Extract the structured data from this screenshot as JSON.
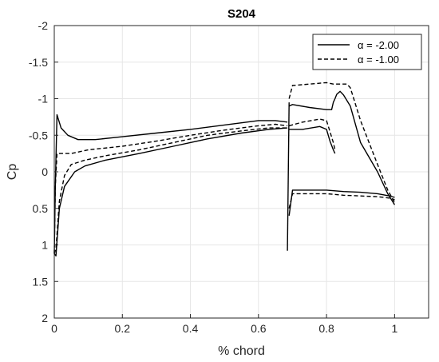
{
  "chart_data": {
    "type": "line",
    "title": "S204",
    "xlabel": "% chord",
    "ylabel": "Cp",
    "xlim": [
      0,
      1.1
    ],
    "ylim": [
      -2,
      2
    ],
    "y_reversed": true,
    "grid": true,
    "legend_position": "top-right",
    "x_ticks": [
      "0",
      "0.2",
      "0.4",
      "0.6",
      "0.8",
      "1"
    ],
    "y_ticks": [
      "-2",
      "-1.5",
      "-1",
      "-0.5",
      "0",
      "0.5",
      "1",
      "1.5",
      "2"
    ],
    "series": [
      {
        "name": "α = -2.00",
        "style": "solid",
        "color": "#000000",
        "segments": [
          {
            "x": [
              0.0,
              0.003,
              0.008,
              0.02,
              0.04,
              0.07,
              0.12,
              0.2,
              0.3,
              0.4,
              0.5,
              0.6,
              0.65,
              0.685
            ],
            "y": [
              1.12,
              0.2,
              -0.78,
              -0.6,
              -0.5,
              -0.44,
              -0.44,
              -0.48,
              -0.53,
              -0.58,
              -0.64,
              -0.7,
              -0.7,
              -0.68
            ]
          },
          {
            "x": [
              0.0,
              0.005,
              0.015,
              0.03,
              0.06,
              0.09,
              0.15,
              0.25,
              0.35,
              0.45,
              0.55,
              0.63,
              0.685
            ],
            "y": [
              1.12,
              1.15,
              0.5,
              0.2,
              0.0,
              -0.08,
              -0.16,
              -0.25,
              -0.35,
              -0.45,
              -0.53,
              -0.58,
              -0.6
            ]
          },
          {
            "x": [
              0.685,
              0.69
            ],
            "y": [
              1.08,
              -0.95
            ]
          },
          {
            "x": [
              0.69,
              0.7,
              0.75,
              0.8,
              0.815,
              0.82,
              0.825,
              0.83,
              0.84,
              0.85,
              0.87,
              0.9,
              0.95,
              0.98,
              1.0
            ],
            "y": [
              -0.9,
              -0.92,
              -0.88,
              -0.85,
              -0.85,
              -0.95,
              -1.0,
              -1.06,
              -1.1,
              -1.05,
              -0.9,
              -0.4,
              -0.0,
              0.3,
              0.45
            ]
          },
          {
            "x": [
              0.69,
              0.73,
              0.78,
              0.8,
              0.81,
              0.82,
              0.825
            ],
            "y": [
              -0.58,
              -0.58,
              -0.62,
              -0.58,
              -0.42,
              -0.3,
              -0.25
            ]
          },
          {
            "x": [
              0.69,
              0.7,
              0.75,
              0.8,
              0.85,
              0.9,
              0.95,
              0.985,
              1.0
            ],
            "y": [
              0.6,
              0.25,
              0.25,
              0.25,
              0.27,
              0.28,
              0.3,
              0.33,
              0.35
            ]
          }
        ]
      },
      {
        "name": "α = -1.00",
        "style": "dashed",
        "color": "#000000",
        "segments": [
          {
            "x": [
              0.0,
              0.003,
              0.008,
              0.02,
              0.05,
              0.1,
              0.2,
              0.3,
              0.4,
              0.5,
              0.6,
              0.65,
              0.685
            ],
            "y": [
              1.12,
              0.2,
              -0.25,
              -0.25,
              -0.25,
              -0.3,
              -0.35,
              -0.42,
              -0.5,
              -0.57,
              -0.63,
              -0.65,
              -0.63
            ]
          },
          {
            "x": [
              0.0,
              0.005,
              0.015,
              0.03,
              0.05,
              0.09,
              0.15,
              0.25,
              0.35,
              0.45,
              0.55,
              0.63,
              0.685
            ],
            "y": [
              1.12,
              1.05,
              0.4,
              0.05,
              -0.1,
              -0.16,
              -0.22,
              -0.3,
              -0.4,
              -0.5,
              -0.56,
              -0.6,
              -0.6
            ]
          },
          {
            "x": [
              0.69,
              0.7,
              0.75,
              0.8,
              0.82,
              0.84,
              0.86,
              0.87,
              0.88,
              0.9,
              0.95,
              0.98,
              1.0
            ],
            "y": [
              -1.0,
              -1.18,
              -1.2,
              -1.22,
              -1.2,
              -1.2,
              -1.2,
              -1.15,
              -1.0,
              -0.7,
              -0.1,
              0.25,
              0.42
            ]
          },
          {
            "x": [
              0.69,
              0.73,
              0.78,
              0.8,
              0.81,
              0.82,
              0.825
            ],
            "y": [
              -0.63,
              -0.68,
              -0.72,
              -0.7,
              -0.55,
              -0.4,
              -0.3
            ]
          },
          {
            "x": [
              0.69,
              0.7,
              0.75,
              0.8,
              0.85,
              0.9,
              0.95,
              0.985,
              1.0
            ],
            "y": [
              0.5,
              0.3,
              0.3,
              0.3,
              0.32,
              0.33,
              0.34,
              0.36,
              0.38
            ]
          }
        ]
      }
    ]
  }
}
